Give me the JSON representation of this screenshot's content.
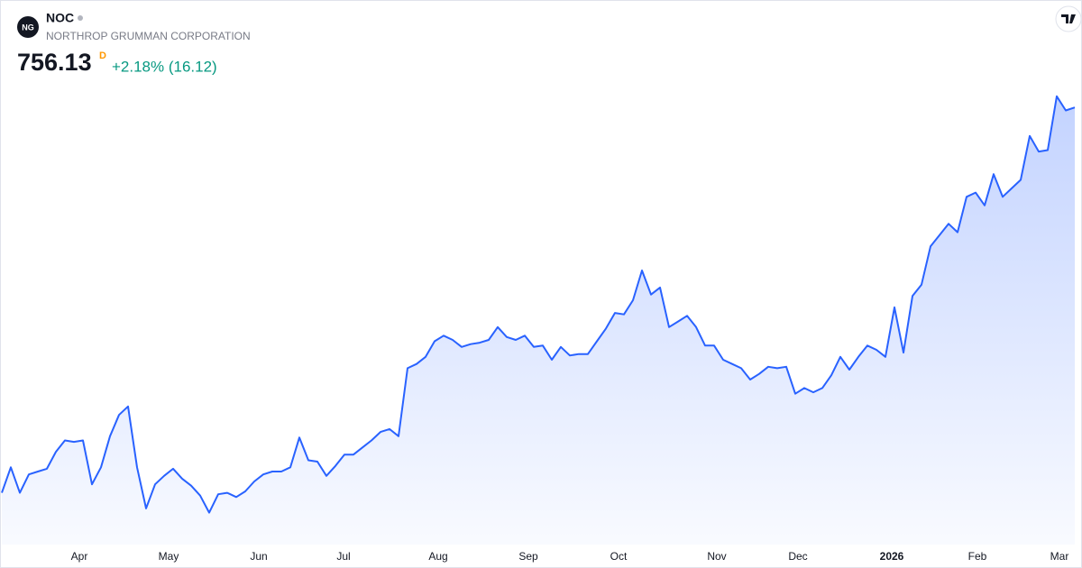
{
  "chart_data": {
    "type": "area",
    "logo": "NG",
    "symbol": "NOC",
    "name": "NORTHROP GRUMMAN CORPORATION",
    "price": "756.13",
    "interval": "D",
    "change": "+2.18% (16.12)",
    "color": "#2962ff",
    "values": [
      484,
      502,
      484,
      497,
      499,
      501,
      513,
      521,
      520,
      521,
      490,
      502,
      524,
      539,
      545,
      502,
      473,
      490,
      496,
      501,
      494,
      489,
      482,
      470,
      483,
      484,
      481,
      485,
      492,
      497,
      499,
      499,
      502,
      523,
      507,
      506,
      496,
      503,
      511,
      511,
      516,
      521,
      527,
      529,
      524,
      572,
      575,
      580,
      591,
      595,
      592,
      587,
      589,
      590,
      592,
      601,
      594,
      592,
      595,
      587,
      588,
      578,
      587,
      581,
      582,
      582,
      591,
      600,
      611,
      610,
      620,
      641,
      624,
      629,
      601,
      605,
      609,
      601,
      588,
      588,
      578,
      575,
      572,
      564,
      568,
      573,
      572,
      573,
      554,
      558,
      555,
      558,
      567,
      580,
      571,
      580,
      588,
      585,
      580,
      615,
      583,
      623,
      631,
      658,
      666,
      674,
      668,
      693,
      696,
      687,
      709,
      693,
      699,
      705,
      736,
      725,
      726,
      764,
      754,
      756.13
    ],
    "xlim": [
      0,
      119
    ],
    "ylim": [
      450,
      790
    ],
    "xticks": [
      {
        "value": 8.6,
        "label": "Apr"
      },
      {
        "value": 18.5,
        "label": "May"
      },
      {
        "value": 28.5,
        "label": "Jun"
      },
      {
        "value": 37.9,
        "label": "Jul"
      },
      {
        "value": 48.4,
        "label": "Aug"
      },
      {
        "value": 58.4,
        "label": "Sep"
      },
      {
        "value": 68.4,
        "label": "Oct"
      },
      {
        "value": 79.3,
        "label": "Nov"
      },
      {
        "value": 88.3,
        "label": "Dec"
      },
      {
        "value": 98.7,
        "label": "2026"
      },
      {
        "value": 108.2,
        "label": "Feb"
      },
      {
        "value": 117.3,
        "label": "Mar"
      }
    ]
  }
}
